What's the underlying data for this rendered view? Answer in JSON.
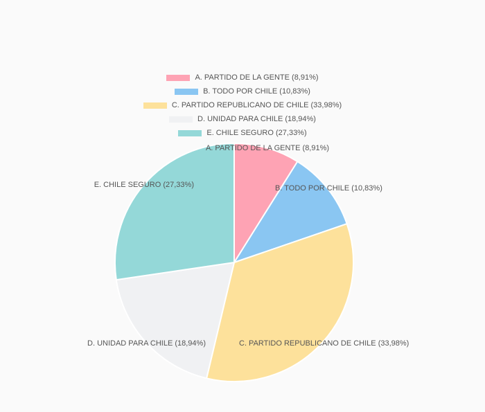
{
  "chart_data": {
    "type": "pie",
    "title": "",
    "legend_position": "top",
    "slices": [
      {
        "label": "A. PARTIDO DE LA GENTE (8,91%)",
        "value": 8.91,
        "color": "#fea3b4"
      },
      {
        "label": "B. TODO POR CHILE (10,83%)",
        "value": 10.83,
        "color": "#8ac6f2"
      },
      {
        "label": "C. PARTIDO REPUBLICANO DE CHILE (33,98%)",
        "value": 33.98,
        "color": "#fde19b"
      },
      {
        "label": "D. UNIDAD PARA CHILE (18,94%)",
        "value": 18.94,
        "color": "#f0f1f3"
      },
      {
        "label": "E. CHILE SEGURO (27,33%)",
        "value": 27.33,
        "color": "#94d8d8"
      }
    ]
  }
}
